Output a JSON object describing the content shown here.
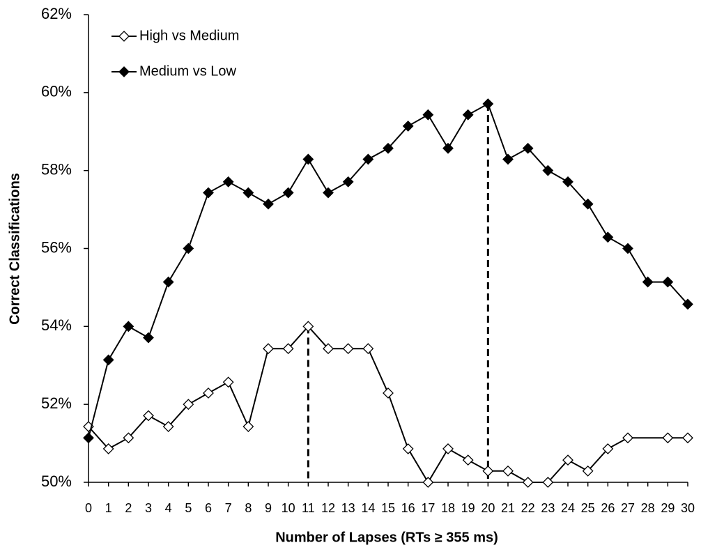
{
  "chart_data": {
    "type": "line",
    "xlabel": "Number of Lapses (RTs ≥ 355 ms)",
    "ylabel": "Correct Classifications",
    "xlim": [
      0,
      30
    ],
    "xticks": [
      0,
      1,
      2,
      3,
      4,
      5,
      6,
      7,
      8,
      9,
      10,
      11,
      12,
      13,
      14,
      15,
      16,
      17,
      18,
      19,
      20,
      21,
      22,
      23,
      24,
      25,
      26,
      27,
      28,
      29,
      30
    ],
    "ylim": [
      50,
      62
    ],
    "yticks": [
      {
        "value": 50,
        "label": "50%"
      },
      {
        "value": 52,
        "label": "52%"
      },
      {
        "value": 54,
        "label": "54%"
      },
      {
        "value": 56,
        "label": "56%"
      },
      {
        "value": 58,
        "label": "58%"
      },
      {
        "value": 60,
        "label": "60%"
      },
      {
        "value": 62,
        "label": "62%"
      }
    ],
    "legend": "top-left",
    "peak_lines": true,
    "series": [
      {
        "name": "High vs Medium",
        "color": "#ffffff",
        "x": [
          0,
          1,
          2,
          3,
          4,
          5,
          6,
          7,
          8,
          9,
          10,
          11,
          12,
          13,
          14,
          15,
          16,
          17,
          18,
          19,
          20,
          21,
          22,
          23,
          24,
          25,
          26,
          27,
          29,
          30
        ],
        "values": [
          51.43,
          50.86,
          51.14,
          51.71,
          51.43,
          52.0,
          52.29,
          52.57,
          51.43,
          53.43,
          53.43,
          54.0,
          53.43,
          53.43,
          53.43,
          52.29,
          50.86,
          50.0,
          50.86,
          50.57,
          50.29,
          50.29,
          50.0,
          50.0,
          50.57,
          50.29,
          50.86,
          51.14,
          51.14,
          51.14
        ]
      },
      {
        "name": "Medium vs Low",
        "color": "#000000",
        "x": [
          0,
          1,
          2,
          3,
          4,
          5,
          6,
          7,
          8,
          9,
          10,
          11,
          12,
          13,
          14,
          15,
          16,
          17,
          18,
          19,
          20,
          21,
          22,
          23,
          24,
          25,
          26,
          27,
          28,
          29,
          30
        ],
        "values": [
          51.14,
          53.14,
          54.0,
          53.71,
          55.14,
          56.0,
          57.43,
          57.71,
          57.43,
          57.14,
          57.43,
          58.29,
          57.43,
          57.71,
          58.29,
          58.57,
          59.14,
          59.43,
          58.57,
          59.43,
          59.71,
          58.29,
          58.57,
          58.0,
          57.71,
          57.14,
          56.29,
          56.0,
          55.14,
          55.14,
          54.57
        ]
      }
    ]
  }
}
